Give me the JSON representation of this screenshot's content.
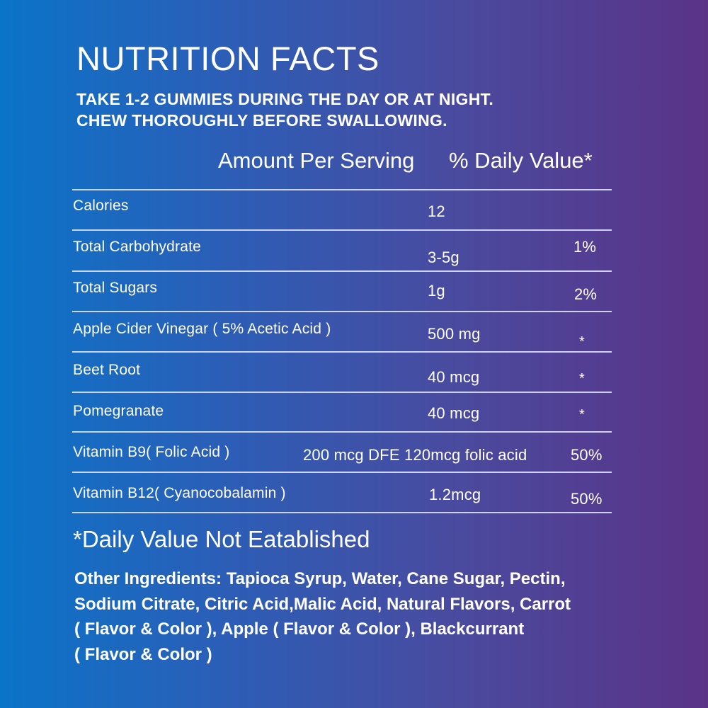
{
  "title": "NUTRITION FACTS",
  "instructions": [
    "TAKE 1-2 GUMMIES DURING THE DAY OR AT NIGHT.",
    "CHEW THOROUGHLY BEFORE SWALLOWING."
  ],
  "columns": {
    "amount": "Amount Per Serving",
    "daily_value": "% Daily Value*"
  },
  "rows": [
    {
      "name": "Calories",
      "amount": "12",
      "dv": ""
    },
    {
      "name": "Total Carbohydrate",
      "amount": "3-5g",
      "dv": "1%"
    },
    {
      "name": "Total Sugars",
      "amount": "1g",
      "dv": "2%"
    },
    {
      "name": "Apple Cider Vinegar ( 5% Acetic Acid )",
      "amount": "500 mg",
      "dv": "*"
    },
    {
      "name": "Beet Root",
      "amount": "40 mcg",
      "dv": "*"
    },
    {
      "name": "Pomegranate",
      "amount": "40 mcg",
      "dv": "*"
    },
    {
      "name": "Vitamin B9( Folic Acid )",
      "amount": "200 mcg DFE 120mcg folic acid",
      "dv": "50%"
    },
    {
      "name": "Vitamin B12( Cyanocobalamin )",
      "amount": "1.2mcg",
      "dv": "50%"
    }
  ],
  "footnote": "*Daily Value Not Eatablished",
  "other_ingredients": [
    "Other Ingredients: Tapioca Syrup, Water, Cane Sugar, Pectin,",
    "Sodium Citrate, Citric Acid,Malic Acid, Natural Flavors, Carrot",
    "( Flavor & Color ), Apple ( Flavor & Color ), Blackcurrant",
    "( Flavor & Color )"
  ]
}
